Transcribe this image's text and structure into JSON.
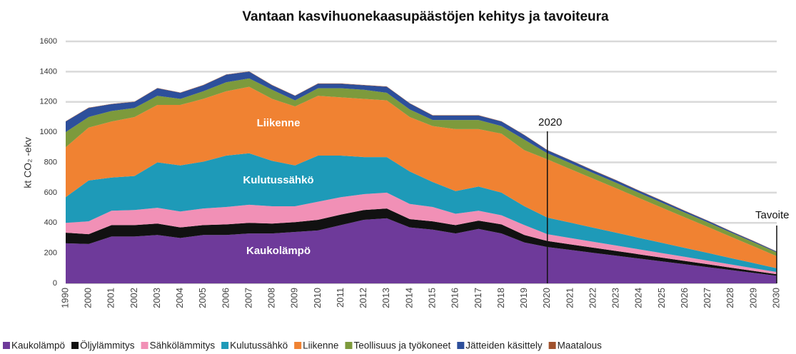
{
  "chart_data": {
    "type": "stacked_area",
    "title": "Vantaan kasvihuonekaasupäästöjen kehitys ja tavoiteura",
    "y_label": "kt CO₂ -ekv",
    "categories": [
      "1990",
      "2000",
      "2001",
      "2002",
      "2003",
      "2004",
      "2005",
      "2006",
      "2007",
      "2008",
      "2009",
      "2010",
      "2011",
      "2012",
      "2013",
      "2014",
      "2015",
      "2016",
      "2017",
      "2018",
      "2019",
      "2020",
      "2021",
      "2022",
      "2023",
      "2024",
      "2025",
      "2026",
      "2027",
      "2028",
      "2029",
      "2030"
    ],
    "series": [
      {
        "name": "Kaukolämpö",
        "color": "#6e3a9a",
        "values": [
          265,
          260,
          310,
          310,
          320,
          300,
          320,
          320,
          330,
          330,
          340,
          350,
          385,
          420,
          430,
          370,
          355,
          330,
          360,
          330,
          270,
          240,
          221,
          202,
          183,
          164,
          145,
          126,
          107,
          88,
          69,
          50
        ]
      },
      {
        "name": "Öljylämmitys",
        "color": "#111111",
        "values": [
          70,
          65,
          75,
          75,
          75,
          70,
          65,
          70,
          70,
          65,
          65,
          70,
          70,
          65,
          65,
          55,
          55,
          55,
          55,
          60,
          50,
          40,
          37,
          34,
          31,
          28,
          25,
          22,
          19,
          16,
          13,
          10
        ]
      },
      {
        "name": "Sähkölämmitys",
        "color": "#f190b6",
        "values": [
          65,
          85,
          95,
          100,
          105,
          105,
          110,
          115,
          120,
          115,
          105,
          120,
          115,
          105,
          105,
          100,
          95,
          75,
          65,
          60,
          65,
          45,
          42,
          39,
          36,
          33,
          30,
          27,
          24,
          21,
          18,
          15
        ]
      },
      {
        "name": "Kulutussähkö",
        "color": "#1e9ab8",
        "values": [
          170,
          270,
          220,
          225,
          300,
          305,
          310,
          340,
          340,
          300,
          270,
          305,
          275,
          245,
          235,
          215,
          165,
          150,
          160,
          150,
          125,
          110,
          102,
          93,
          85,
          76,
          68,
          59,
          51,
          42,
          34,
          25
        ]
      },
      {
        "name": "Liikenne",
        "color": "#f08232",
        "values": [
          330,
          350,
          370,
          390,
          380,
          400,
          415,
          425,
          440,
          410,
          390,
          395,
          385,
          385,
          375,
          360,
          370,
          410,
          380,
          390,
          370,
          385,
          354,
          324,
          294,
          263,
          232,
          202,
          172,
          141,
          110,
          80
        ]
      },
      {
        "name": "Teollisuus ja työkoneet",
        "color": "#7d9a3c",
        "values": [
          100,
          70,
          70,
          60,
          60,
          40,
          50,
          60,
          55,
          60,
          40,
          50,
          60,
          60,
          50,
          50,
          40,
          60,
          60,
          50,
          70,
          40,
          39,
          37,
          36,
          34,
          33,
          31,
          30,
          28,
          27,
          25
        ]
      },
      {
        "name": "Jätteiden käsittely",
        "color": "#2d4f9b",
        "values": [
          70,
          60,
          45,
          40,
          50,
          40,
          40,
          50,
          45,
          30,
          30,
          30,
          30,
          30,
          40,
          40,
          30,
          30,
          30,
          30,
          30,
          20,
          19,
          17,
          16,
          14,
          13,
          11,
          10,
          8,
          7,
          5
        ]
      },
      {
        "name": "Maatalous",
        "color": "#a0522d",
        "values": [
          2,
          2,
          2,
          2,
          2,
          2,
          2,
          2,
          2,
          2,
          2,
          2,
          2,
          2,
          2,
          2,
          2,
          2,
          2,
          2,
          2,
          2,
          2,
          2,
          2,
          2,
          2,
          2,
          2,
          2,
          2,
          1
        ]
      }
    ],
    "ylim": [
      0,
      1600
    ],
    "yticks": [
      0,
      200,
      400,
      600,
      800,
      1000,
      1200,
      1400,
      1600
    ],
    "grid": true,
    "area_labels": [
      "Liikenne",
      "Kulutussähkö",
      "Kaukolämpö"
    ],
    "annotations": [
      {
        "text": "2020",
        "x": "2020"
      },
      {
        "text": "Tavoite",
        "x": "2030"
      }
    ],
    "legend": "bottom"
  }
}
